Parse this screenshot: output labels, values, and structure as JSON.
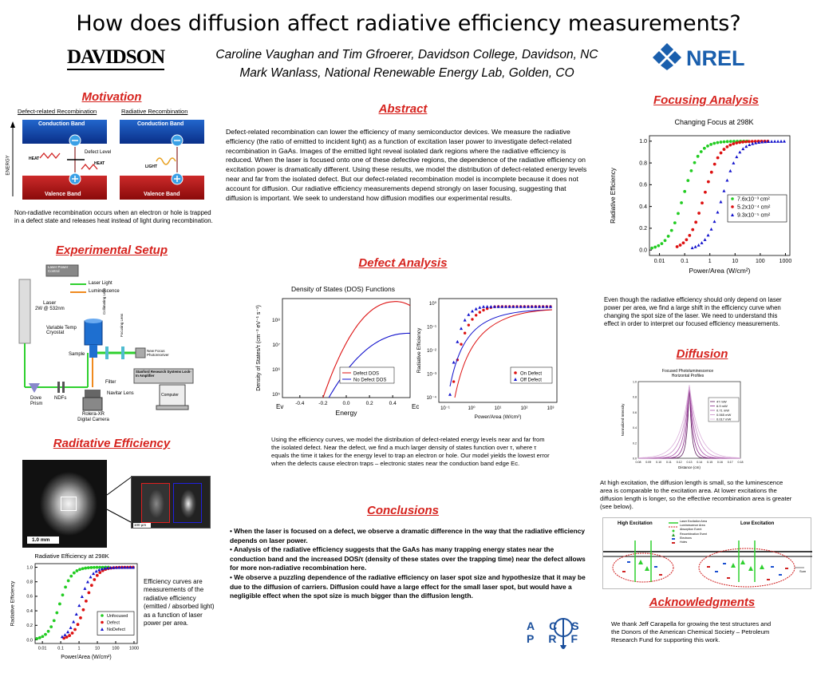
{
  "header": {
    "title": "How does diffusion affect radiative efficiency measurements?",
    "authors_line1": "Caroline Vaughan and Tim Gfroerer, Davidson College, Davidson, NC",
    "authors_line2": "Mark Wanlass, National Renewable Energy Lab, Golden, CO",
    "davidson_logo": "DAVIDSON",
    "nrel_logo": "NREL"
  },
  "motivation": {
    "heading": "Motivation",
    "label_left": "Defect-related Recombination",
    "label_right": "Radiative Recombination",
    "conduction_band": "Conduction Band",
    "valence_band": "Valence Band",
    "defect_level": "Defect Level",
    "heat": "HEAT",
    "light": "LIGHT",
    "energy": "ENERGY",
    "caption": "Non-radiative recombination occurs when an electron or hole is trapped in a defect state and releases heat instead of light during recombination."
  },
  "setup": {
    "heading": "Experimental Setup",
    "laser_power_control": "Laser Power Control",
    "legend_laser": "Laser Light",
    "legend_lum": "Luminescence",
    "laser": "Laser",
    "laser_spec": "2W @ 532nm",
    "cryostat": "Variable Temp Cryostat",
    "sample": "Sample",
    "collimating": "Collimating Lens",
    "focusing": "Focusing Lens",
    "filter_v": "Filter",
    "photoreceiver": "New Focus Photoreceiver",
    "lockin": "Stanford Research Systems Lock-In Amplifier",
    "filter": "Filter",
    "navitar": "Navitar Lens",
    "computer": "Computer",
    "dove": "Dove Prism",
    "ndfs": "NDFs",
    "camera": "Rolera-XR Digital Camera"
  },
  "rad_eff": {
    "heading": "Raditative Efficiency",
    "scale_big": "1.0 mm",
    "scale_small": "100 µm",
    "chart_title": "Radiative Efficiency at 298K",
    "caption": "Efficiency curves are measurements of the radiative efficiency (emitted / absorbed light) as a function of laser power per area."
  },
  "abstract": {
    "heading": "Abstract",
    "text": "Defect-related recombination can lower the efficiency of many semiconductor devices. We measure the radiative efficiency (the ratio of emitted to incident light) as a function of excitation laser power to investigate defect-related recombination in GaAs.  Images of the emitted light reveal isolated dark regions where the radiative efficiency is reduced.  When the laser is focused onto one of these defective regions, the dependence of the radiative efficiency on excitation power is dramatically different.  Using these results, we model the distribution of defect-related energy levels near and far from the isolated defect.  But our defect-related recombination model is incomplete because it does not account for diffusion.  Our radiative efficiency measurements depend strongly on laser focusing, suggesting that diffusion is important.  We seek to understand how diffusion modifies our experimental results."
  },
  "defect": {
    "heading": "Defect Analysis",
    "dos_title": "Density of States (DOS) Functions",
    "caption": "Using the efficiency curves, we model the distribution of defect-related energy levels near and far from the isolated defect.  Near the defect, we find a much larger density of states function over τ, where τ equals the time it takes for the energy level to trap an electron or hole.  Our model yields the lowest error when the defects cause electron traps – electronic states near the conduction band edge Ec."
  },
  "conclusions": {
    "heading": "Conclusions",
    "items": [
      "• When the laser is focused on a defect, we observe a dramatic difference in the way that the radiative efficiency depends on laser power.",
      "• Analysis of the radiative efficiency suggests that the GaAs has many trapping energy states near the conduction band and the increased DOS/τ (density of these states over the trapping time) near the defect allows for more non-radiative recombination here.",
      "• We observe a puzzling dependence of the radiative efficiency on laser spot size and hypothesize that it may be due to the diffusion of carriers.  Diffusion could have a large effect for the small laser spot, but would have a negligible effect when the spot size is much bigger than the diffusion length."
    ],
    "acs_prf": "ACS PRF"
  },
  "focusing": {
    "heading": "Focusing Analysis",
    "chart_title": "Changing Focus at 298K",
    "caption": "Even though the radiative efficiency should only depend on laser power per area, we find a large shift in the efficiency curve when changing the spot size of the laser.  We need to understand this effect in order to interpret our focused efficiency measurements."
  },
  "diffusion": {
    "heading": "Diffusion",
    "chart_title": "Focused Photoluminescence Horizontal Profiles",
    "caption": "At high excitation, the diffusion length is small, so the luminescence area is comparable to the excitation area.  At lower excitations the diffusion length is longer, so the effective recombination area is greater (see below).",
    "high": "High Excitation",
    "low": "Low Excitation",
    "legend": [
      "Laser Excitation Area",
      "Luminescence Area",
      "Absorption Event",
      "Recombination Event",
      "Electrons",
      "Holes"
    ],
    "sum": "Sum"
  },
  "ack": {
    "heading": "Acknowledgments",
    "text": "We thank Jeff Carapella for growing the test structures and the Donors of the American Chemical Society – Petroleum Research Fund for supporting this work."
  },
  "chart_data": [
    {
      "id": "focus",
      "type": "scatter",
      "title": "Changing Focus at 298K",
      "xlabel": "Power/Area (W/cm²)",
      "ylabel": "Radiative Efficiency",
      "xscale": "log",
      "xlim": [
        0.004,
        1500
      ],
      "ylim": [
        -0.05,
        1.05
      ],
      "xticks": [
        "0.01",
        "0.1",
        "1",
        "10",
        "100",
        "1000"
      ],
      "yticks": [
        "0.0",
        "0.2",
        "0.4",
        "0.6",
        "0.8",
        "1.0"
      ],
      "legend_position": "right",
      "series": [
        {
          "name": "7.6x10⁻³ cm²",
          "color": "#22cc22",
          "marker": "circle",
          "x0": 0.005,
          "x1": 30,
          "mid": 0.09,
          "n": 30
        },
        {
          "name": "5.2x10⁻⁴ cm²",
          "color": "#dd1111",
          "marker": "circle",
          "x0": 0.05,
          "x1": 200,
          "mid": 0.6,
          "n": 30
        },
        {
          "name": "9.3x10⁻⁵ cm²",
          "color": "#1111cc",
          "marker": "triangle",
          "x0": 0.2,
          "x1": 900,
          "mid": 3.2,
          "n": 30
        }
      ]
    },
    {
      "id": "radeff",
      "type": "scatter",
      "title": "Radiative Efficiency at 298K",
      "xlabel": "Power/Area (W/cm²)",
      "ylabel": "Radiative Efficiency",
      "xscale": "log",
      "xlim": [
        0.004,
        1500
      ],
      "ylim": [
        -0.05,
        1.05
      ],
      "xticks": [
        "0.01",
        "0.1",
        "1",
        "10",
        "100",
        "1000"
      ],
      "yticks": [
        "0.0",
        "0.2",
        "0.4",
        "0.6",
        "0.8",
        "1.0"
      ],
      "legend_position": "bottom-right",
      "series": [
        {
          "name": "Unfocused",
          "color": "#22cc22",
          "marker": "circle",
          "x0": 0.005,
          "x1": 40,
          "mid": 0.09,
          "n": 26
        },
        {
          "name": "Defect",
          "color": "#dd1111",
          "marker": "circle",
          "x0": 0.15,
          "x1": 900,
          "mid": 2.2,
          "n": 26
        },
        {
          "name": "NoDefect",
          "color": "#1111cc",
          "marker": "triangle",
          "x0": 0.12,
          "x1": 900,
          "mid": 1.1,
          "n": 26
        }
      ]
    },
    {
      "id": "dos",
      "type": "line",
      "title": "Density of States (DOS) Functions",
      "xlabel": "Energy",
      "ylabel": "Density of States/τ (cm⁻³ eV⁻¹ s⁻¹)",
      "xlim": [
        -0.55,
        0.55
      ],
      "xticks": [
        "-0.4",
        "-0.2",
        "0.0",
        "0.2",
        "0.4"
      ],
      "yticks": [
        "10⁵",
        "10⁶",
        "10⁷",
        "10⁸"
      ],
      "ev": "Ev",
      "ec": "Ec",
      "series": [
        {
          "name": "Defect DOS",
          "color": "#dd1111"
        },
        {
          "name": "No Defect DOS",
          "color": "#1111cc"
        }
      ]
    },
    {
      "id": "logeff",
      "type": "scatter",
      "xlabel": "Power/Area (W/cm²)",
      "ylabel": "Radiative Efficiency",
      "xscale": "log",
      "yscale": "log",
      "xticks": [
        "10⁻¹",
        "10⁰",
        "10¹",
        "10²",
        "10³"
      ],
      "yticks": [
        "10⁻⁴",
        "10⁻³",
        "10⁻²",
        "10⁻¹",
        "10⁰"
      ],
      "series": [
        {
          "name": "On Defect",
          "color": "#dd1111",
          "marker": "circle"
        },
        {
          "name": "Off Defect",
          "color": "#1111cc",
          "marker": "triangle"
        }
      ]
    },
    {
      "id": "profiles",
      "type": "line",
      "title": "Focused Photoluminescence Horizontal Profiles",
      "xlabel": "Distance (cm)",
      "ylabel": "Normalized Intensity",
      "xticks": [
        "0.08",
        "0.09",
        "0.10",
        "0.11",
        "0.12",
        "0.13",
        "0.14",
        "0.15",
        "0.16",
        "0.17",
        "0.18"
      ],
      "yticks": [
        "0.0",
        "0.2",
        "0.4",
        "0.6",
        "0.8",
        "1.0"
      ],
      "series": [
        {
          "name": "47 mW"
        },
        {
          "name": "6.9 mW"
        },
        {
          "name": "0.71 mW"
        },
        {
          "name": "0.065 mW"
        },
        {
          "name": "0.017 mW"
        }
      ]
    }
  ]
}
